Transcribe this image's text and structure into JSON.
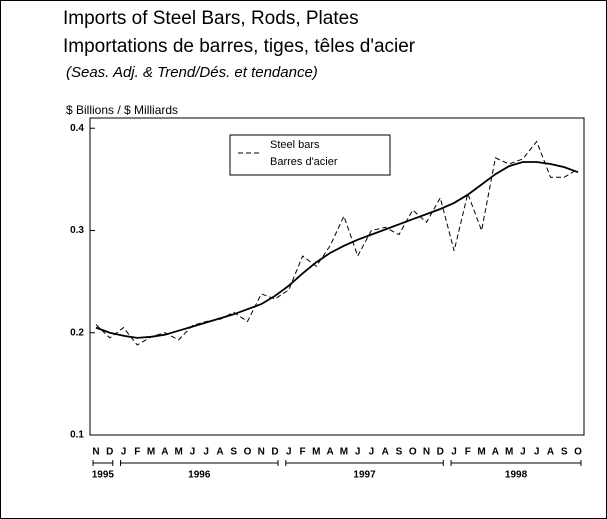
{
  "chart_data": {
    "type": "line",
    "title": "Imports of Steel Bars, Rods, Plates",
    "title_fr": "Importations de barres, tiges, têles d'acier",
    "subtitle": "(Seas. Adj. & Trend/Dés. et tendance)",
    "y_label": "$ Billions / $ Milliards",
    "categories": [
      "N",
      "D",
      "J",
      "F",
      "M",
      "A",
      "M",
      "J",
      "J",
      "A",
      "S",
      "O",
      "N",
      "D",
      "J",
      "F",
      "M",
      "A",
      "M",
      "J",
      "J",
      "A",
      "S",
      "O",
      "N",
      "D",
      "J",
      "F",
      "M",
      "A",
      "M",
      "J",
      "J",
      "A",
      "S",
      "O"
    ],
    "years": [
      "1995",
      "1996",
      "1997",
      "1998"
    ],
    "series": [
      {
        "name": "Steel bars",
        "name_fr": "Barres d'acier",
        "color": "#000000",
        "dash": true,
        "values": [
          0.208,
          0.195,
          0.205,
          0.188,
          0.196,
          0.2,
          0.193,
          0.207,
          0.211,
          0.213,
          0.22,
          0.211,
          0.238,
          0.233,
          0.242,
          0.275,
          0.265,
          0.285,
          0.314,
          0.275,
          0.3,
          0.303,
          0.296,
          0.32,
          0.308,
          0.332,
          0.28,
          0.336,
          0.3,
          0.371,
          0.365,
          0.37,
          0.387,
          0.352,
          0.352,
          0.36
        ]
      },
      {
        "color": "#000000",
        "dash": false,
        "values": [
          0.205,
          0.2,
          0.197,
          0.195,
          0.196,
          0.198,
          0.202,
          0.206,
          0.21,
          0.214,
          0.218,
          0.223,
          0.228,
          0.236,
          0.246,
          0.258,
          0.269,
          0.278,
          0.285,
          0.291,
          0.296,
          0.301,
          0.306,
          0.311,
          0.316,
          0.321,
          0.327,
          0.335,
          0.345,
          0.355,
          0.363,
          0.367,
          0.367,
          0.365,
          0.362,
          0.357
        ]
      }
    ],
    "ylim": [
      0.1,
      0.41
    ],
    "yticks": [
      0.1,
      0.2,
      0.3,
      0.4
    ]
  }
}
